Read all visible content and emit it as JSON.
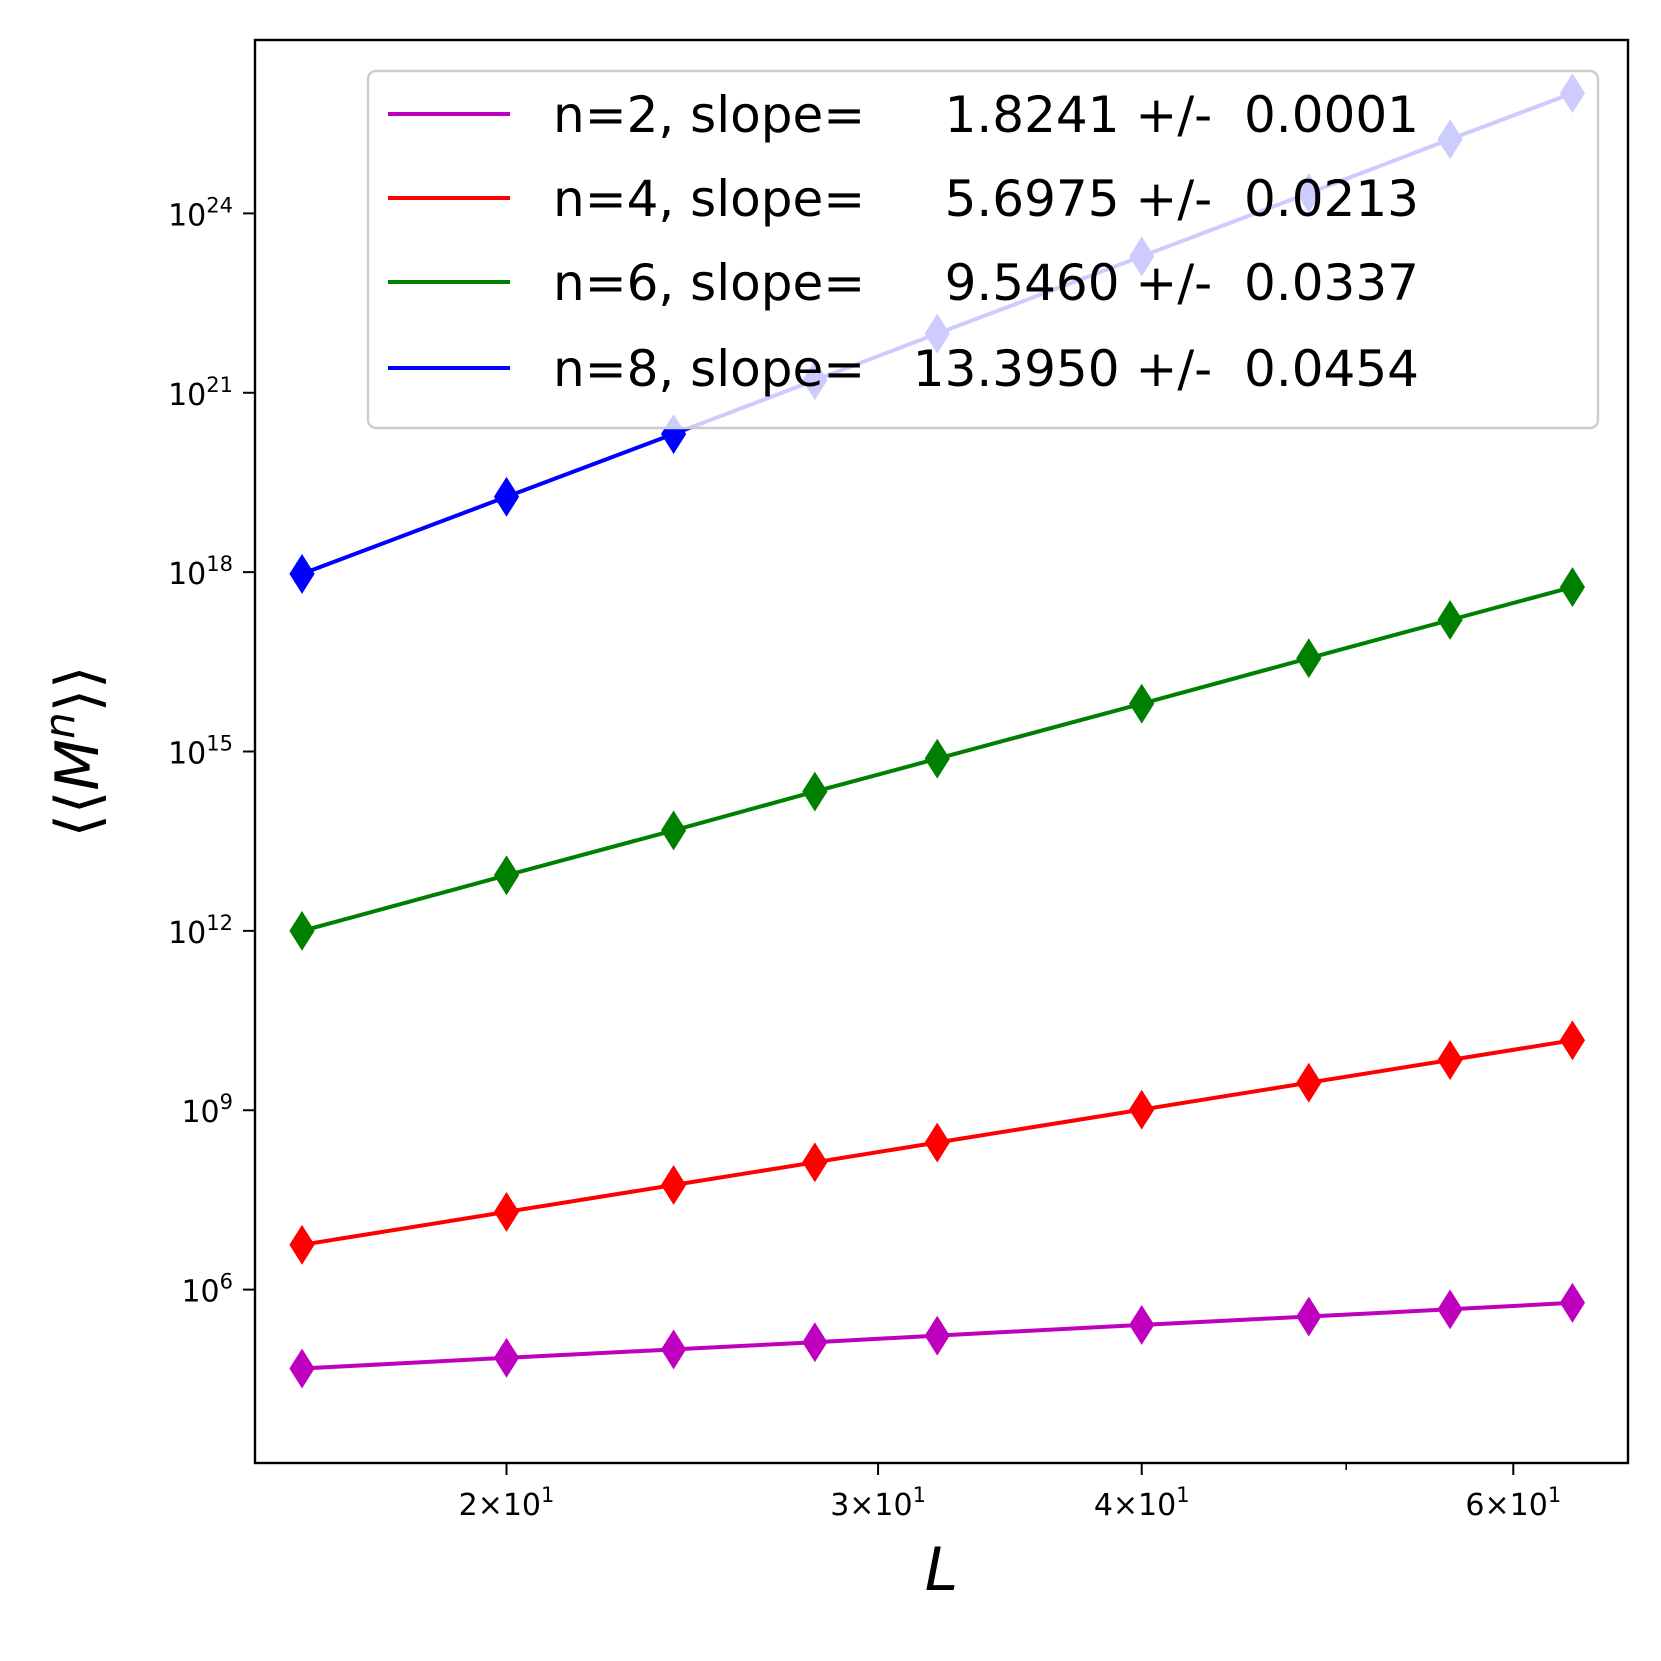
{
  "chart_data": {
    "type": "line",
    "scale": {
      "x": "log",
      "y": "log"
    },
    "xlabel": "L",
    "ylabel": "⟨⟨M^n⟩⟩",
    "x": [
      16,
      20,
      24,
      28,
      32,
      40,
      48,
      56,
      64
    ],
    "xlim": [
      15.2,
      68.0
    ],
    "ylim_log10": [
      3.1,
      26.9
    ],
    "x_ticks": [
      {
        "value": 20,
        "mantissa": "2",
        "label_text": "2×10",
        "exp": "1"
      },
      {
        "value": 30,
        "mantissa": "3",
        "label_text": "3×10",
        "exp": "1"
      },
      {
        "value": 40,
        "mantissa": "4",
        "label_text": "4×10",
        "exp": "1"
      },
      {
        "value": 60,
        "mantissa": "6",
        "label_text": "6×10",
        "exp": "1"
      }
    ],
    "x_minor_ticks": [
      50
    ],
    "y_ticks": [
      {
        "log10": 6,
        "base": "10",
        "exp": "6"
      },
      {
        "log10": 9,
        "base": "10",
        "exp": "9"
      },
      {
        "log10": 12,
        "base": "10",
        "exp": "12"
      },
      {
        "log10": 15,
        "base": "10",
        "exp": "15"
      },
      {
        "log10": 18,
        "base": "10",
        "exp": "18"
      },
      {
        "log10": 21,
        "base": "10",
        "exp": "21"
      },
      {
        "log10": 24,
        "base": "10",
        "exp": "24"
      }
    ],
    "series": [
      {
        "name": "n=2",
        "n": "2",
        "color": "#bf00bf",
        "slope": "1.8241",
        "error": "0.0001",
        "legend_label": "n=2, slope=     1.8241 +/-  0.0001",
        "log10_values": [
          4.68,
          4.86,
          5.0,
          5.12,
          5.23,
          5.41,
          5.55,
          5.67,
          5.78
        ]
      },
      {
        "name": "n=4",
        "n": "4",
        "color": "#ff0000",
        "slope": "5.6975",
        "error": "0.0213",
        "legend_label": "n=4, slope=     5.6975 +/-  0.0213",
        "log10_values": [
          6.75,
          7.3,
          7.75,
          8.13,
          8.46,
          9.01,
          9.46,
          9.84,
          10.17
        ]
      },
      {
        "name": "n=6",
        "n": "6",
        "color": "#008000",
        "slope": "9.5460",
        "error": "0.0337",
        "legend_label": "n=6, slope=     9.5460 +/-  0.0337",
        "log10_values": [
          12.0,
          12.93,
          13.68,
          14.33,
          14.88,
          15.8,
          16.56,
          17.2,
          17.75
        ]
      },
      {
        "name": "n=8",
        "n": "8",
        "color": "#0000ff",
        "slope": "13.3950",
        "error": "0.0454",
        "legend_label": "n=8, slope=   13.3950 +/-  0.0454",
        "log10_values": [
          17.97,
          19.26,
          20.31,
          21.21,
          21.99,
          23.28,
          24.34,
          25.24,
          26.01
        ]
      }
    ],
    "legend_position": "upper right",
    "marker": "thin-diamond",
    "grid": false
  }
}
